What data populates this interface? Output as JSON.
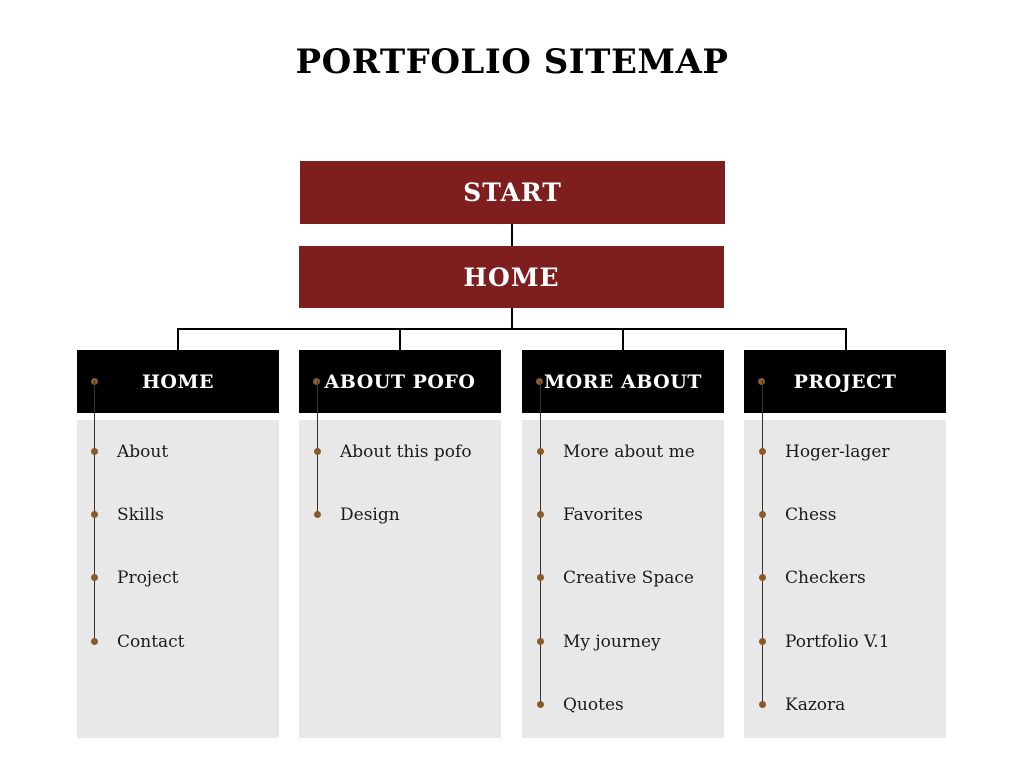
{
  "title": "PORTFOLIO SITEMAP",
  "colors": {
    "accent_red": "#7e1e1e",
    "header_black": "#000000",
    "panel_gray": "#e8e8e8",
    "bullet_brown": "#8a5a2b"
  },
  "start": {
    "label": "START"
  },
  "home_root": {
    "label": "HOME"
  },
  "columns": [
    {
      "header": "HOME",
      "items": [
        "About",
        "Skills",
        "Project",
        "Contact"
      ]
    },
    {
      "header": "ABOUT POFO",
      "items": [
        "About this pofo",
        "Design"
      ]
    },
    {
      "header": "MORE ABOUT",
      "items": [
        "More about me",
        "Favorites",
        "Creative Space",
        "My journey",
        "Quotes"
      ]
    },
    {
      "header": "PROJECT",
      "items": [
        "Hoger-lager",
        "Chess",
        "Checkers",
        "Portfolio V.1",
        "Kazora"
      ]
    }
  ]
}
